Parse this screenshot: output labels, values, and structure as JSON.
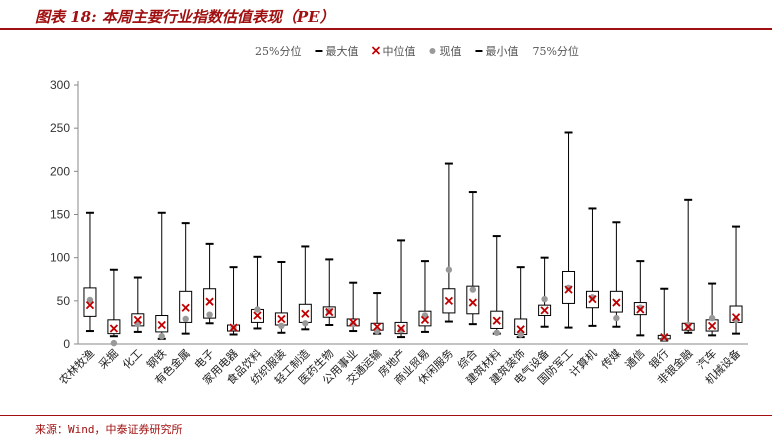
{
  "header": {
    "title": "图表 18:  本周主要行业指数估值表现（PE）"
  },
  "footer": {
    "source": "来源：Wind，中泰证券研究所"
  },
  "colors": {
    "title": "#a01010",
    "box": "#000000",
    "median": "#c00000",
    "current": "#999999"
  },
  "chart_data": {
    "type": "boxplot",
    "ylim": [
      0,
      300
    ],
    "yticks": [
      0,
      50,
      100,
      150,
      200,
      250,
      300
    ],
    "legend": {
      "position": "top-center",
      "items": [
        {
          "label": "25%分位",
          "marker": "none"
        },
        {
          "label": "最大值",
          "marker": "dash"
        },
        {
          "label": "中位值",
          "marker": "x"
        },
        {
          "label": "现值",
          "marker": "dot"
        },
        {
          "label": "最小值",
          "marker": "dash"
        },
        {
          "label": "75%分位",
          "marker": "none"
        }
      ]
    },
    "categories": [
      "农林牧渔",
      "采掘",
      "化工",
      "钢铁",
      "有色金属",
      "电子",
      "家用电器",
      "食品饮料",
      "纺织服装",
      "轻工制造",
      "医药生物",
      "公用事业",
      "交通运输",
      "房地产",
      "商业贸易",
      "休闲服务",
      "综合",
      "建筑材料",
      "建筑装饰",
      "电气设备",
      "国防军工",
      "计算机",
      "传媒",
      "通信",
      "银行",
      "非银金融",
      "汽车",
      "机械设备"
    ],
    "max": [
      152,
      86,
      77,
      152,
      140,
      116,
      89,
      101,
      95,
      113,
      98,
      71,
      59,
      120,
      96,
      209,
      176,
      125,
      89,
      100,
      245,
      157,
      141,
      96,
      64,
      167,
      70,
      136
    ],
    "q75": [
      65,
      28,
      35,
      33,
      61,
      64,
      22,
      40,
      36,
      46,
      43,
      29,
      24,
      25,
      38,
      64,
      67,
      38,
      29,
      45,
      84,
      61,
      61,
      48,
      10,
      24,
      28,
      44
    ],
    "median": [
      45,
      18,
      28,
      22,
      42,
      49,
      19,
      33,
      29,
      35,
      37,
      25,
      20,
      18,
      28,
      50,
      48,
      27,
      17,
      39,
      63,
      52,
      48,
      40,
      8,
      20,
      21,
      31
    ],
    "q25": [
      32,
      12,
      21,
      14,
      25,
      30,
      15,
      25,
      22,
      25,
      31,
      21,
      16,
      12,
      21,
      36,
      35,
      18,
      11,
      33,
      47,
      42,
      37,
      34,
      6,
      16,
      15,
      25
    ],
    "min": [
      15,
      9,
      14,
      6,
      12,
      24,
      11,
      18,
      13,
      17,
      22,
      15,
      12,
      8,
      14,
      26,
      23,
      12,
      8,
      20,
      19,
      21,
      20,
      10,
      4,
      13,
      10,
      12
    ],
    "current": [
      51,
      1,
      23,
      9,
      29,
      34,
      19,
      40,
      21,
      24,
      38,
      23,
      15,
      16,
      33,
      86,
      63,
      13,
      11,
      52,
      65,
      54,
      30,
      42,
      7,
      22,
      30,
      28
    ]
  }
}
